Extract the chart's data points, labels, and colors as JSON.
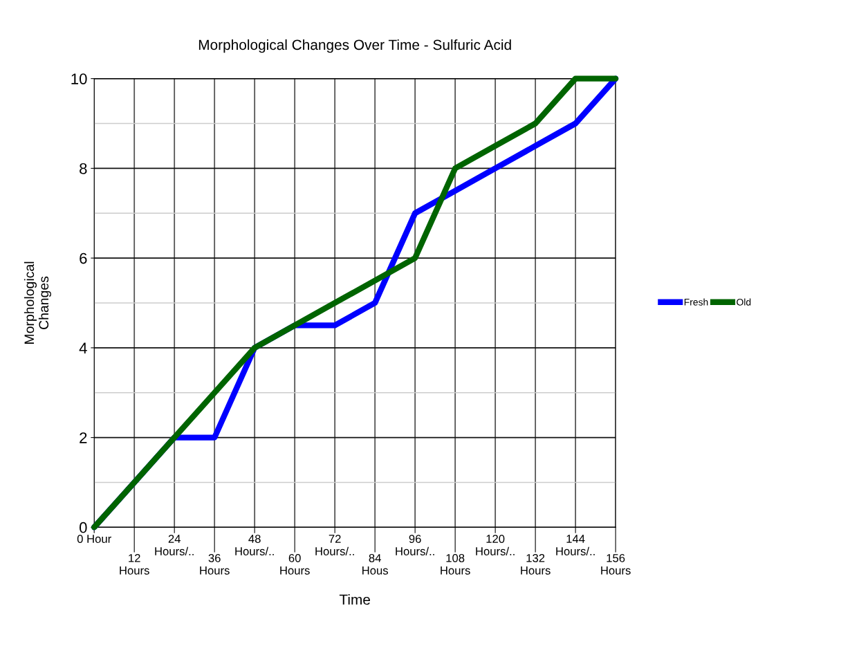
{
  "chart_data": {
    "type": "line",
    "title": "Morphological Changes Over Time - Sulfuric Acid",
    "xlabel": "Time",
    "ylabel": "Morphological\nChanges",
    "categories": [
      "0 Hour",
      "12\nHours",
      "24\nHours/..",
      "36\nHours",
      "48\nHours/..",
      "60\nHours",
      "72\nHours/..",
      "84\nHous",
      "96\nHours/..",
      "108\nHours",
      "120\nHours/..",
      "132\nHours",
      "144\nHours/..",
      "156\nHours"
    ],
    "series": [
      {
        "name": "Fresh",
        "color": "#0000ff",
        "values": [
          0,
          1,
          2,
          2,
          4,
          4.5,
          4.5,
          5,
          7,
          7.5,
          8,
          8.5,
          9,
          10
        ]
      },
      {
        "name": "Old",
        "color": "#006400",
        "values": [
          0,
          1,
          2,
          3,
          4,
          4.5,
          5,
          5.5,
          6,
          8,
          8.5,
          9,
          10,
          10
        ]
      }
    ],
    "ylim": [
      0,
      10
    ],
    "yticks": [
      0,
      {
        "value": 1,
        "label": null
      },
      2,
      {
        "value": 3,
        "label": null
      },
      4,
      {
        "value": 5,
        "label": null
      },
      6,
      {
        "value": 7,
        "label": null
      },
      8,
      {
        "value": 9,
        "label": null
      },
      10
    ],
    "grid": true,
    "legend": "right",
    "marker": "none",
    "line_style": "solid"
  }
}
